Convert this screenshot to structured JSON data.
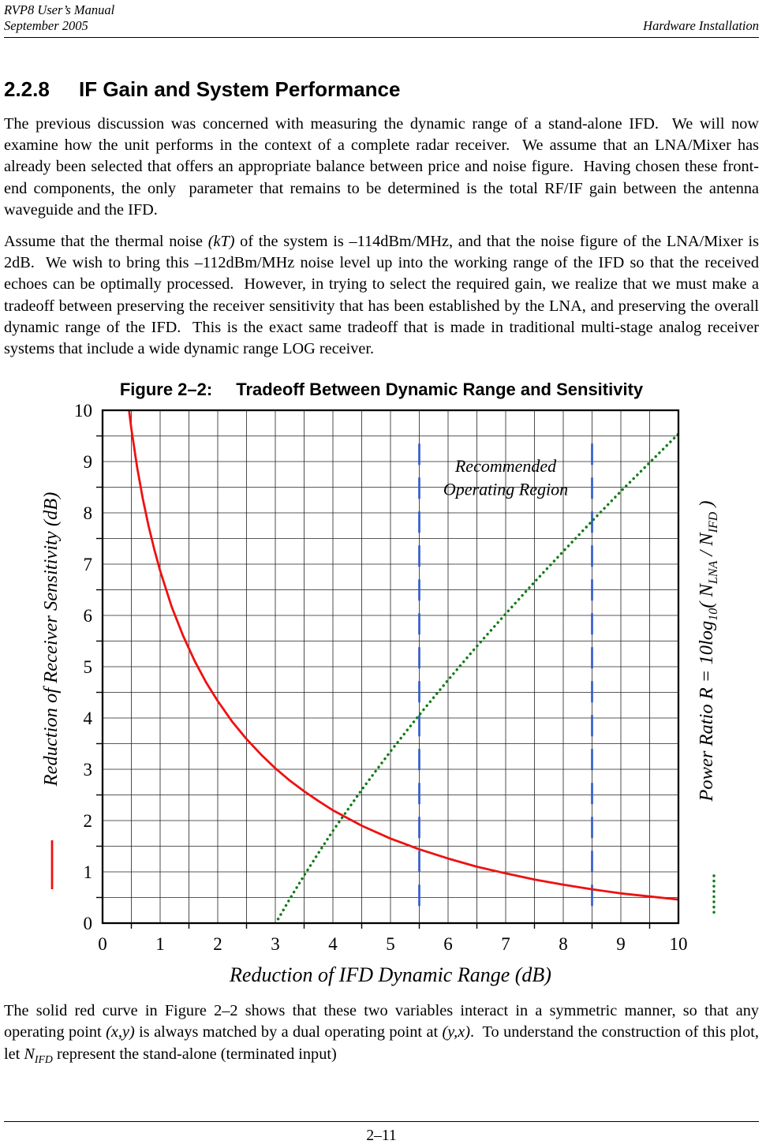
{
  "page": {
    "header": {
      "manual": "RVP8 User’s Manual",
      "date": "September 2005",
      "section": "Hardware Installation"
    },
    "heading": {
      "number": "2.2.8",
      "title": "IF Gain and System Performance"
    },
    "para1": "The previous discussion was concerned with measuring the dynamic range of a stand-alone IFD.  We will now examine how the unit performs in the context of a complete radar receiver.  We assume that an LNA/Mixer has already been selected that offers an appropriate balance between price and noise figure.  Having chosen these front-end components, the only  parameter that remains to be determined is the total RF/IF gain between the antenna waveguide and the IFD.",
    "para2": {
      "pre": "Assume that the thermal noise ",
      "italic1": "(kT)",
      "post": " of the system is –114dBm/MHz, and that the noise figure of the LNA/Mixer is 2dB.  We wish to bring this –112dBm/MHz noise level up into the working range of the IFD so that the received echoes can be optimally processed.  However, in trying to select the required gain, we realize that we must make a tradeoff between preserving the receiver sensitivity that has been established by the LNA, and preserving the overall dynamic range of the IFD.  This is the exact same tradeoff that is made in traditional multi-stage analog receiver systems that include a wide dynamic range LOG receiver."
    },
    "caption": {
      "label": "Figure 2–2:",
      "title": "Tradeoff Between Dynamic Range and Sensitivity"
    },
    "para3": {
      "p1": "The solid red curve in Figure 2–2 shows that these two variables interact in a symmetric manner, so that any operating point ",
      "i1": "(x,y)",
      "p2": " is always matched by a dual operating point at ",
      "i2": "(y,x)",
      "p3": ".  To understand the construction of this plot, let ",
      "i3": "N",
      "sub3": "IFD",
      "p4": " represent the stand-alone (terminated input)"
    },
    "footer": {
      "page_number": "2–11"
    }
  },
  "chart_data": {
    "type": "line",
    "title": "Figure 2–2: Tradeoff Between Dynamic Range and Sensitivity",
    "xlabel": "Reduction of IFD Dynamic Range (dB)",
    "ylabel_left": "Reduction of Receiver Sensitivity (dB)",
    "ylabel_right_parts": [
      {
        "text": "Power Ratio R = 10log"
      },
      {
        "text": "10",
        "sub": true
      },
      {
        "text": "( N"
      },
      {
        "text": "LNA",
        "sub": true
      },
      {
        "text": " / N"
      },
      {
        "text": "IFD",
        "sub": true
      },
      {
        "text": " )"
      }
    ],
    "xlim": [
      0,
      10
    ],
    "ylim": [
      0,
      10
    ],
    "x_ticks": [
      0,
      1,
      2,
      3,
      4,
      5,
      6,
      7,
      8,
      9,
      10
    ],
    "y_ticks": [
      0,
      1,
      2,
      3,
      4,
      5,
      6,
      7,
      8,
      9,
      10
    ],
    "grid": true,
    "grid_step": 0.5,
    "annotation": {
      "lines": [
        "Recommended",
        "Operating Region"
      ],
      "x": 7.0,
      "y": [
        8.8,
        8.35
      ]
    },
    "series": [
      {
        "name": "reduction-of-receiver-sensitivity",
        "style": "solid",
        "color": "#ee1111",
        "points": [
          [
            0.46,
            10
          ],
          [
            0.5,
            9.64
          ],
          [
            0.6,
            8.89
          ],
          [
            0.7,
            8.27
          ],
          [
            0.8,
            7.74
          ],
          [
            0.9,
            7.28
          ],
          [
            1,
            6.87
          ],
          [
            1.2,
            6.17
          ],
          [
            1.4,
            5.6
          ],
          [
            1.6,
            5.11
          ],
          [
            1.8,
            4.69
          ],
          [
            2,
            4.33
          ],
          [
            2.25,
            3.93
          ],
          [
            2.5,
            3.59
          ],
          [
            2.75,
            3.29
          ],
          [
            3,
            3.02
          ],
          [
            3.25,
            2.78
          ],
          [
            3.5,
            2.57
          ],
          [
            3.75,
            2.38
          ],
          [
            4,
            2.2
          ],
          [
            4.5,
            1.9
          ],
          [
            5,
            1.65
          ],
          [
            5.5,
            1.44
          ],
          [
            6,
            1.26
          ],
          [
            6.5,
            1.1
          ],
          [
            7,
            0.97
          ],
          [
            7.5,
            0.85
          ],
          [
            8,
            0.75
          ],
          [
            8.5,
            0.66
          ],
          [
            9,
            0.58
          ],
          [
            9.5,
            0.52
          ],
          [
            10,
            0.46
          ]
        ]
      },
      {
        "name": "power-ratio-R",
        "style": "dotted",
        "color": "#0d7a12",
        "points": [
          [
            3.05,
            0.08
          ],
          [
            3.25,
            0.47
          ],
          [
            3.5,
            0.93
          ],
          [
            3.75,
            1.37
          ],
          [
            4,
            1.8
          ],
          [
            4.5,
            2.6
          ],
          [
            5,
            3.35
          ],
          [
            5.5,
            4.06
          ],
          [
            6,
            4.74
          ],
          [
            6.5,
            5.4
          ],
          [
            7,
            6.03
          ],
          [
            7.5,
            6.65
          ],
          [
            8,
            7.25
          ],
          [
            8.5,
            7.84
          ],
          [
            9,
            8.42
          ],
          [
            9.5,
            8.98
          ],
          [
            10,
            9.54
          ]
        ]
      }
    ],
    "recommended_region": {
      "color": "#2f58c9",
      "style": "dashed",
      "x_values": [
        5.5,
        8.5
      ],
      "y_span": [
        0.1,
        9.35
      ]
    }
  }
}
